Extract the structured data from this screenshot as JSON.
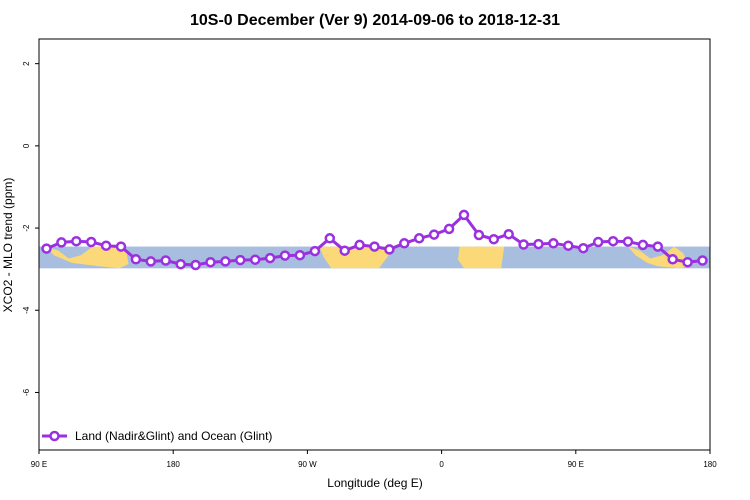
{
  "chart_data": {
    "type": "line",
    "title": "10S-0 December (Ver 9)   2014-09-06 to 2018-12-31",
    "xlabel": "Longitude (deg E)",
    "ylabel": "XCO2 - MLO trend (ppm)",
    "xlim": [
      90,
      540
    ],
    "ylim": [
      -7.4,
      2.6
    ],
    "x_ticks": [
      {
        "value": 90,
        "label": "90 E"
      },
      {
        "value": 180,
        "label": "180"
      },
      {
        "value": 270,
        "label": "90 W"
      },
      {
        "value": 360,
        "label": "0"
      },
      {
        "value": 450,
        "label": "90 E"
      },
      {
        "value": 540,
        "label": "180"
      }
    ],
    "y_ticks": [
      2,
      0,
      -2,
      -4,
      -6
    ],
    "legend": {
      "position": "bottom-left"
    },
    "colors": {
      "series": "#9b30e0",
      "ocean": "#a8bedf",
      "land": "#fbd878"
    },
    "background_band": {
      "y_top": -2.45,
      "y_bottom": -2.98
    },
    "series": [
      {
        "name": "Land (Nadir&Glint) and Ocean (Glint)",
        "x": [
          95,
          105,
          115,
          125,
          135,
          145,
          155,
          165,
          175,
          185,
          195,
          205,
          215,
          225,
          235,
          245,
          255,
          265,
          275,
          285,
          295,
          305,
          315,
          325,
          335,
          345,
          355,
          365,
          375,
          385,
          395,
          405,
          415,
          425,
          435,
          445,
          455,
          465,
          475,
          485,
          495,
          505,
          515,
          525,
          535
        ],
        "y": [
          -2.5,
          -2.35,
          -2.32,
          -2.34,
          -2.43,
          -2.45,
          -2.76,
          -2.81,
          -2.79,
          -2.88,
          -2.9,
          -2.83,
          -2.81,
          -2.78,
          -2.77,
          -2.73,
          -2.67,
          -2.66,
          -2.56,
          -2.25,
          -2.55,
          -2.41,
          -2.45,
          -2.52,
          -2.37,
          -2.25,
          -2.16,
          -2.02,
          -1.68,
          -2.17,
          -2.27,
          -2.15,
          -2.4,
          -2.39,
          -2.37,
          -2.43,
          -2.49,
          -2.34,
          -2.32,
          -2.33,
          -2.41,
          -2.45,
          -2.76,
          -2.83,
          -2.79
        ]
      }
    ]
  }
}
